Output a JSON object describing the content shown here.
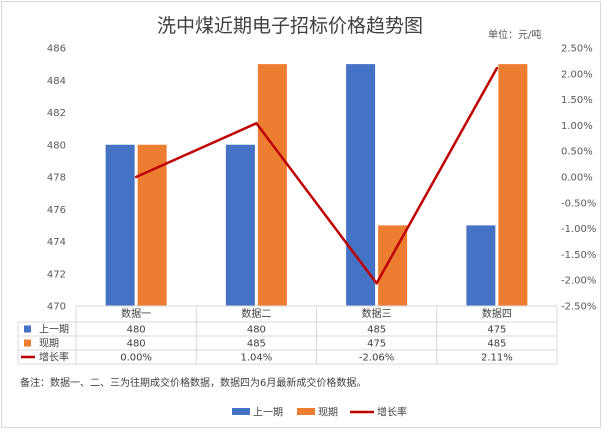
{
  "chart_data": {
    "type": "bar",
    "title": "洗中煤近期电子招标价格趋势图",
    "unit_label": "单位：元/吨",
    "categories": [
      "数据一",
      "数据二",
      "数据三",
      "数据四"
    ],
    "series": [
      {
        "name": "上一期",
        "type": "bar",
        "axis": "left",
        "color": "#4472c4",
        "values": [
          480,
          480,
          485,
          475
        ]
      },
      {
        "name": "现期",
        "type": "bar",
        "axis": "left",
        "color": "#ed7d31",
        "values": [
          480,
          485,
          475,
          485
        ]
      },
      {
        "name": "增长率",
        "type": "line",
        "axis": "right",
        "color": "#c00000",
        "values": [
          0.0,
          1.04,
          -2.06,
          2.11
        ]
      }
    ],
    "table_values": [
      [
        "480",
        "480",
        "485",
        "475"
      ],
      [
        "480",
        "485",
        "475",
        "485"
      ],
      [
        "0.00%",
        "1.04%",
        "-2.06%",
        "2.11%"
      ]
    ],
    "ylim": [
      470,
      486
    ],
    "yticks": [
      470,
      472,
      474,
      476,
      478,
      480,
      482,
      484,
      486
    ],
    "y2lim": [
      -2.5,
      2.5
    ],
    "y2ticks": [
      "2.50%",
      "2.00%",
      "1.50%",
      "1.00%",
      "0.50%",
      "0.00%",
      "-0.50%",
      "-1.00%",
      "-1.50%",
      "-2.00%",
      "-2.50%"
    ],
    "grid": false,
    "legend": "bottom-center",
    "note": "备注：数据一、二、三为往期成交价格数据，数据四为6月最新成交价格数据。"
  }
}
